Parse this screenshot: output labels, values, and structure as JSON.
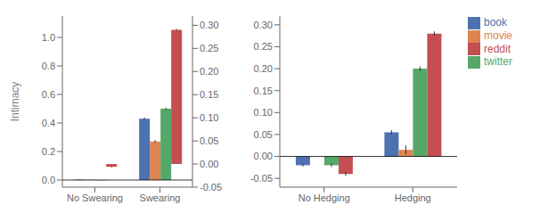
{
  "chart_data": [
    {
      "type": "bar",
      "categories": [
        "No Swearing",
        "Swearing"
      ],
      "ylabel": "Intimacy",
      "ylim": [
        -0.05,
        1.15
      ],
      "yticks": [
        {
          "value": 0,
          "label": "0.0"
        },
        0.2,
        0.4,
        0.6,
        0.8,
        {
          "value": 1,
          "label": "1.0"
        }
      ],
      "y2lim": [
        -0.05,
        0.32
      ],
      "y2ticks": [
        -0.05,
        {
          "value": 0,
          "label": "0.00"
        },
        0.05,
        {
          "value": 0.1,
          "label": "0.10"
        },
        0.15,
        {
          "value": 0.2,
          "label": "0.20"
        },
        0.25,
        {
          "value": 0.3,
          "label": "0.30"
        }
      ],
      "grid": false,
      "series": [
        {
          "name": "book",
          "color": "#4C72B0",
          "values": [
            0.003,
            0.43
          ],
          "errors": [
            0.002,
            0.008
          ]
        },
        {
          "name": "movie",
          "color": "#DD8452",
          "values": [
            0.002,
            0.27
          ],
          "errors": [
            0.002,
            0.01
          ]
        },
        {
          "name": "twitter",
          "color": "#55A868",
          "values": [
            -0.002,
            0.5
          ],
          "errors": [
            0.002,
            0.007
          ]
        },
        {
          "name": "reddit",
          "color": "#C44E52",
          "axis": "y2",
          "values": [
            -0.006,
            0.29
          ],
          "errors": [
            0.001,
            0.002
          ]
        }
      ]
    },
    {
      "type": "bar",
      "categories": [
        "No Hedging",
        "Hedging"
      ],
      "ylim": [
        -0.07,
        0.32
      ],
      "yticks": [
        -0.05,
        {
          "value": 0,
          "label": "0.00"
        },
        0.05,
        {
          "value": 0.1,
          "label": "0.10"
        },
        0.15,
        {
          "value": 0.2,
          "label": "0.20"
        },
        0.25,
        {
          "value": 0.3,
          "label": "0.30"
        }
      ],
      "grid": false,
      "legend": "right",
      "series": [
        {
          "name": "book",
          "color": "#4C72B0",
          "values": [
            -0.02,
            0.055
          ],
          "errors": [
            0.003,
            0.005
          ]
        },
        {
          "name": "movie",
          "color": "#DD8452",
          "values": [
            0.0,
            0.015
          ],
          "errors": [
            0.003,
            0.01
          ]
        },
        {
          "name": "twitter",
          "color": "#55A868",
          "values": [
            -0.02,
            0.2
          ],
          "errors": [
            0.004,
            0.005
          ]
        },
        {
          "name": "reddit",
          "color": "#C44E52",
          "values": [
            -0.04,
            0.28
          ],
          "errors": [
            0.004,
            0.005
          ]
        }
      ]
    }
  ]
}
